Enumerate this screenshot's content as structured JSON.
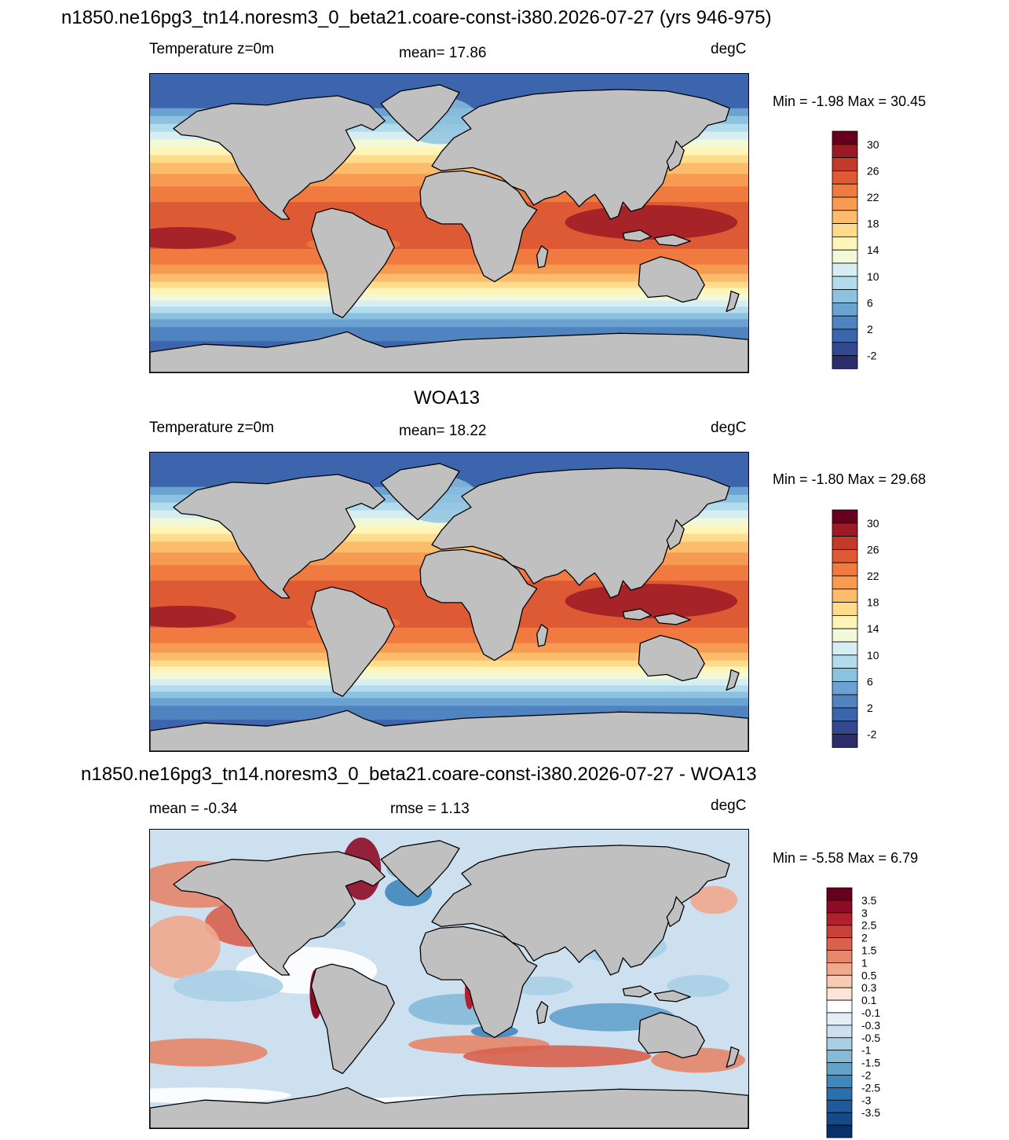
{
  "panels": [
    {
      "id": "model",
      "title": "n1850.ne16pg3_tn14.noresm3_0_beta21.coare-const-i380.2026-07-27 (yrs 946-975)",
      "left_label": "Temperature z=0m",
      "center_label": "mean=  17.86",
      "units": "degC",
      "minmax": "Min =  -1.98 Max =  30.45",
      "kind": "sst",
      "colorbar": {
        "colors": [
          "#67001f",
          "#9c1a26",
          "#c43a2a",
          "#dd5a34",
          "#f07a40",
          "#f79b52",
          "#fbbc6c",
          "#fedc8c",
          "#fff5b8",
          "#f2f9d8",
          "#d6edf2",
          "#b2dbeb",
          "#8dc1e0",
          "#6aa3d1",
          "#4f84c0",
          "#3c65ad",
          "#33488f",
          "#2d2c6b"
        ],
        "labels": [
          "30",
          "26",
          "22",
          "18",
          "14",
          "10",
          "6",
          "2",
          "-2"
        ]
      }
    },
    {
      "id": "obs",
      "title": "WOA13",
      "left_label": "Temperature z=0m",
      "center_label": "mean=  18.22",
      "units": "degC",
      "minmax": "Min =  -1.80 Max =  29.68",
      "kind": "sst",
      "colorbar": {
        "colors": [
          "#67001f",
          "#9c1a26",
          "#c43a2a",
          "#dd5a34",
          "#f07a40",
          "#f79b52",
          "#fbbc6c",
          "#fedc8c",
          "#fff5b8",
          "#f2f9d8",
          "#d6edf2",
          "#b2dbeb",
          "#8dc1e0",
          "#6aa3d1",
          "#4f84c0",
          "#3c65ad",
          "#33488f",
          "#2d2c6b"
        ],
        "labels": [
          "30",
          "26",
          "22",
          "18",
          "14",
          "10",
          "6",
          "2",
          "-2"
        ]
      }
    },
    {
      "id": "diff",
      "title": "n1850.ne16pg3_tn14.noresm3_0_beta21.coare-const-i380.2026-07-27 - WOA13",
      "left_label": "mean =  -0.34",
      "center_label": "rmse =   1.13",
      "units": "degC",
      "minmax": "Min =  -5.58 Max =   6.79",
      "kind": "diff",
      "colorbar": {
        "colors": [
          "#67001f",
          "#8e0b26",
          "#b21f2e",
          "#c8413b",
          "#d8624d",
          "#e6866a",
          "#f0a98c",
          "#f7cbb3",
          "#fbe5d8",
          "#ffffff",
          "#e3eef6",
          "#cce0ef",
          "#aacfe5",
          "#86bad9",
          "#62a2cb",
          "#4087bd",
          "#2c6fae",
          "#1e5a9c",
          "#134a87",
          "#08306b"
        ],
        "labels": [
          "3.5",
          "3",
          "2.5",
          "2",
          "1.5",
          "1",
          "0.5",
          "0.3",
          "0.1",
          "-0.1",
          "-0.3",
          "-0.5",
          "-1",
          "-1.5",
          "-2",
          "-2.5",
          "-3",
          "-3.5"
        ]
      }
    }
  ]
}
